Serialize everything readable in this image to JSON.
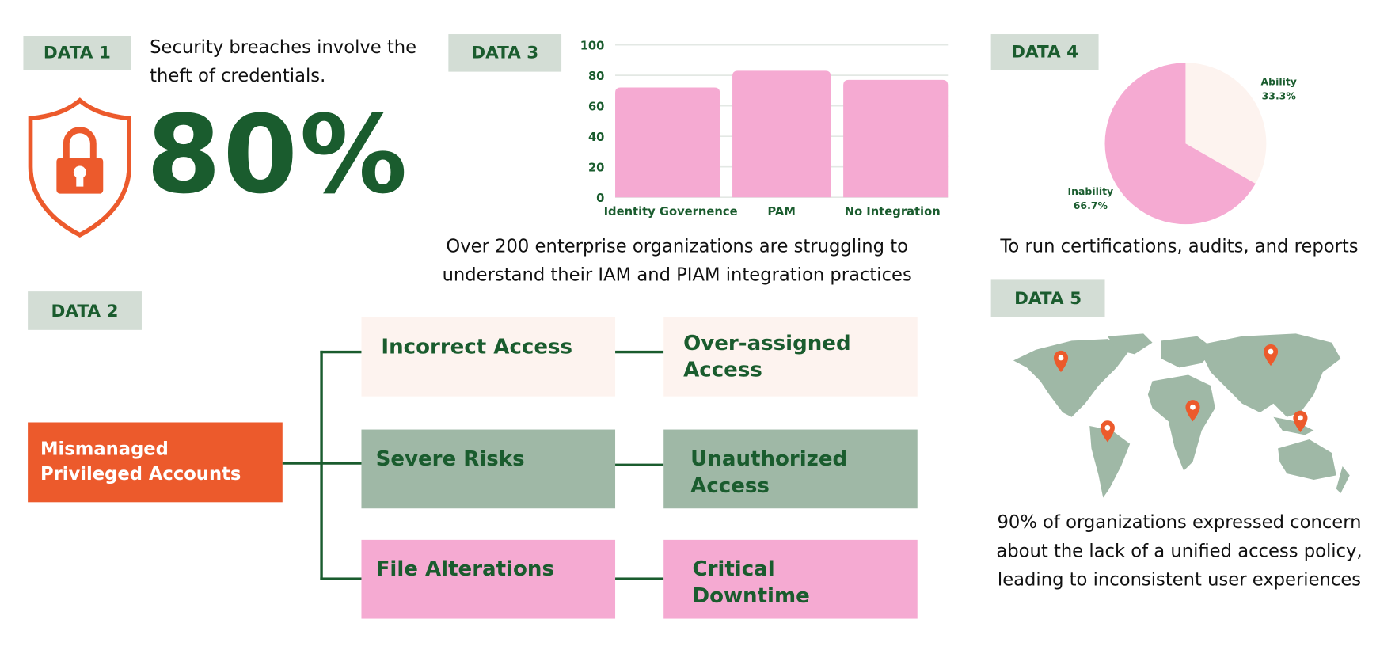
{
  "colors": {
    "green": "#1a5c2e",
    "orange": "#ec5a2c",
    "tag_bg": "#d3ddd5",
    "sage": "#9fb8a6",
    "pink": "#f5aad2",
    "cream": "#fdf3ef"
  },
  "data1": {
    "tag": "DATA 1",
    "text": "Security breaches involve the theft of credentials.",
    "stat": "80%",
    "icon": "shield-lock-icon"
  },
  "data2": {
    "tag": "DATA 2",
    "root": "Mismanaged Privileged Accounts",
    "boxes": [
      "Incorrect Access",
      "Over-assigned Access",
      "Severe Risks",
      "Unauthorized Access",
      "File Alterations",
      "Critical Downtime"
    ]
  },
  "data3": {
    "tag": "DATA 3",
    "caption": "Over 200 enterprise organizations are struggling to understand their IAM and PIAM integration practices"
  },
  "data4": {
    "tag": "DATA 4",
    "caption": "To run certifications, audits, and reports"
  },
  "data5": {
    "tag": "DATA 5",
    "caption": "90% of organizations  expressed concern about the lack of a unified access policy, leading to inconsistent user experiences",
    "icon": "world-map-icon"
  },
  "chart_data": [
    {
      "type": "bar",
      "categories": [
        "Identity Governence",
        "PAM",
        "No Integration"
      ],
      "values": [
        72,
        83,
        77
      ],
      "ylim": [
        0,
        100
      ],
      "yticks": [
        "0",
        "20",
        "40",
        "60",
        "80",
        "100"
      ],
      "grid": true,
      "color": "#f5aad2"
    },
    {
      "type": "pie",
      "labels": [
        "Ability",
        "Inability"
      ],
      "values": [
        33.3,
        66.7
      ],
      "value_labels": [
        "33.3%",
        "66.7%"
      ],
      "colors": [
        "#fdf3ef",
        "#f5aad2"
      ]
    }
  ]
}
